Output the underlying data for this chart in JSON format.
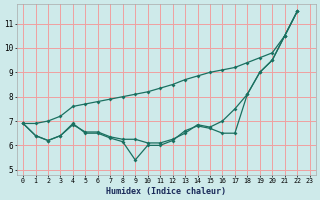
{
  "xlabel": "Humidex (Indice chaleur)",
  "background_color": "#ceeaea",
  "grid_color": "#f0a0a0",
  "line_color": "#1a7060",
  "xlim": [
    -0.5,
    23.5
  ],
  "ylim": [
    4.8,
    11.8
  ],
  "yticks": [
    5,
    6,
    7,
    8,
    9,
    10,
    11
  ],
  "xticks": [
    0,
    1,
    2,
    3,
    4,
    5,
    6,
    7,
    8,
    9,
    10,
    11,
    12,
    13,
    14,
    15,
    16,
    17,
    18,
    19,
    20,
    21,
    22,
    23
  ],
  "lines": [
    [
      6.9,
      6.4,
      6.2,
      6.4,
      6.9,
      6.5,
      6.5,
      6.3,
      6.15,
      5.4,
      6.0,
      6.0,
      6.2,
      6.6,
      6.8,
      6.7,
      6.5,
      6.5,
      8.1,
      9.0,
      9.5,
      10.5,
      11.5
    ],
    [
      6.9,
      6.4,
      6.2,
      6.4,
      6.85,
      6.55,
      6.55,
      6.35,
      6.25,
      6.25,
      6.1,
      6.1,
      6.25,
      6.5,
      6.85,
      6.75,
      7.0,
      7.5,
      8.1,
      9.0,
      9.5,
      10.5,
      11.5
    ],
    [
      6.9,
      6.9,
      7.0,
      7.2,
      7.6,
      7.7,
      7.8,
      7.9,
      8.0,
      8.1,
      8.2,
      8.35,
      8.5,
      8.7,
      8.85,
      9.0,
      9.1,
      9.2,
      9.4,
      9.6,
      9.8,
      10.5,
      11.5
    ]
  ]
}
